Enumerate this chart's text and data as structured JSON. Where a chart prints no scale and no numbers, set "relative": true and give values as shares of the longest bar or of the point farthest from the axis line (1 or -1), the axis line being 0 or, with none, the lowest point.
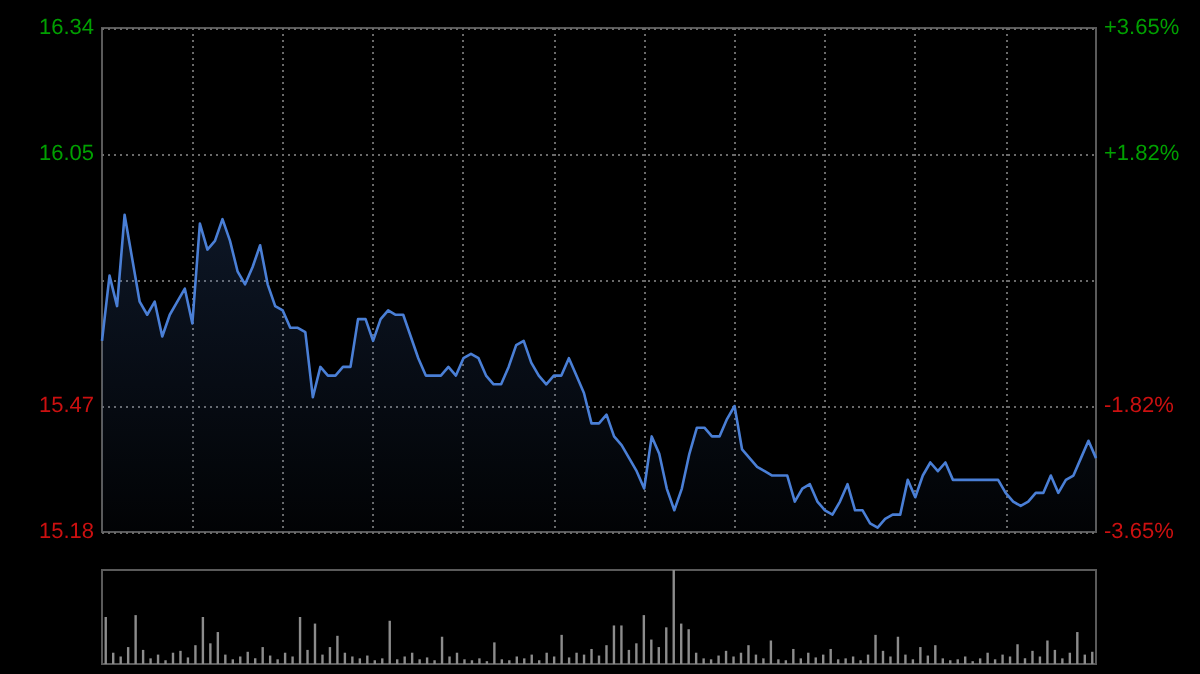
{
  "chart_data": [
    {
      "type": "area",
      "categories": [
        null,
        null,
        null,
        null,
        null,
        null,
        null,
        null,
        null,
        null,
        null,
        null,
        null,
        null,
        null,
        null,
        null,
        null,
        null,
        null,
        null,
        null,
        null,
        null,
        null,
        null,
        null,
        null,
        null,
        null,
        null,
        null,
        null,
        null,
        null,
        null,
        null,
        null,
        null,
        null,
        null,
        null,
        null,
        null,
        null,
        null,
        null,
        null,
        null,
        null,
        null,
        null,
        null,
        null,
        null,
        null,
        null,
        null,
        null,
        null,
        null,
        null,
        null,
        null,
        null,
        null,
        null,
        null,
        null,
        null,
        null,
        null,
        null,
        null,
        null,
        null,
        null,
        null,
        null,
        null,
        null,
        null,
        null,
        null,
        null,
        null,
        null,
        null,
        null,
        null,
        null,
        null,
        null,
        null,
        null,
        null,
        null,
        null,
        null,
        null,
        null,
        null,
        null,
        null,
        null,
        null,
        null,
        null,
        null,
        null,
        null,
        null,
        null,
        null,
        null,
        null,
        null,
        null,
        null,
        null,
        null,
        null,
        null,
        null,
        null,
        null,
        null,
        null,
        null,
        null,
        null,
        null,
        null
      ],
      "series": [
        {
          "color": "#4a7fd6",
          "values": [
            15.62,
            15.77,
            15.7,
            15.91,
            15.81,
            15.71,
            15.68,
            15.71,
            15.63,
            15.68,
            15.71,
            15.74,
            15.66,
            15.89,
            15.83,
            15.85,
            15.9,
            15.85,
            15.78,
            15.75,
            15.79,
            15.84,
            15.75,
            15.7,
            15.69,
            15.65,
            15.65,
            15.64,
            15.49,
            15.56,
            15.54,
            15.54,
            15.56,
            15.56,
            15.67,
            15.67,
            15.62,
            15.67,
            15.69,
            15.68,
            15.68,
            15.63,
            15.58,
            15.54,
            15.54,
            15.54,
            15.56,
            15.54,
            15.58,
            15.59,
            15.58,
            15.54,
            15.52,
            15.52,
            15.56,
            15.61,
            15.62,
            15.57,
            15.54,
            15.52,
            15.54,
            15.54,
            15.58,
            15.54,
            15.5,
            15.43,
            15.43,
            15.45,
            15.4,
            15.38,
            15.35,
            15.32,
            15.28,
            15.4,
            15.36,
            15.28,
            15.23,
            15.28,
            15.36,
            15.42,
            15.42,
            15.4,
            15.4,
            15.44,
            15.47,
            15.37,
            15.35,
            15.33,
            15.32,
            15.31,
            15.31,
            15.31,
            15.25,
            15.28,
            15.29,
            15.25,
            15.23,
            15.22,
            15.25,
            15.29,
            15.23,
            15.23,
            15.2,
            15.19,
            15.21,
            15.22,
            15.22,
            15.3,
            15.26,
            15.31,
            15.34,
            15.32,
            15.34,
            15.3,
            15.3,
            15.3,
            15.3,
            15.3,
            15.3,
            15.3,
            15.27,
            15.25,
            15.24,
            15.25,
            15.27,
            15.27,
            15.31,
            15.27,
            15.3,
            15.31,
            15.35,
            15.39,
            15.35
          ]
        }
      ],
      "ylim": [
        15.18,
        16.34
      ],
      "yticks": [
        15.18,
        15.47,
        {
          "value": 15.76,
          "label": null
        },
        16.05,
        16.34
      ],
      "y2lim": [
        -3.65,
        3.65
      ],
      "y2ticks": [
        {
          "value": -3.65,
          "label": "-3.65%"
        },
        {
          "value": -1.82,
          "label": "-1.82%"
        },
        {
          "value": 0,
          "label": null
        },
        {
          "value": 1.82,
          "label": "+1.82%"
        },
        {
          "value": 3.65,
          "label": "+3.65%"
        }
      ],
      "grid": true,
      "tick_labels": "y"
    },
    {
      "type": "bar",
      "relative": true,
      "tick_labels": false,
      "categories": [
        null,
        null,
        null,
        null,
        null,
        null,
        null,
        null,
        null,
        null,
        null,
        null,
        null,
        null,
        null,
        null,
        null,
        null,
        null,
        null,
        null,
        null,
        null,
        null,
        null,
        null,
        null,
        null,
        null,
        null,
        null,
        null,
        null,
        null,
        null,
        null,
        null,
        null,
        null,
        null,
        null,
        null,
        null,
        null,
        null,
        null,
        null,
        null,
        null,
        null,
        null,
        null,
        null,
        null,
        null,
        null,
        null,
        null,
        null,
        null,
        null,
        null,
        null,
        null,
        null,
        null,
        null,
        null,
        null,
        null,
        null,
        null,
        null,
        null,
        null,
        null,
        null,
        null,
        null,
        null,
        null,
        null,
        null,
        null,
        null,
        null,
        null,
        null,
        null,
        null,
        null,
        null,
        null,
        null,
        null,
        null,
        null,
        null,
        null,
        null,
        null,
        null,
        null,
        null,
        null,
        null,
        null,
        null,
        null,
        null,
        null,
        null,
        null,
        null,
        null,
        null,
        null,
        null,
        null,
        null,
        null,
        null,
        null,
        null,
        null,
        null,
        null,
        null,
        null,
        null,
        null,
        null,
        null
      ],
      "series": [
        {
          "color": "#8c8c8c",
          "values": [
            0.5,
            0.12,
            0.08,
            0.18,
            0.52,
            0.15,
            0.06,
            0.1,
            0.04,
            0.12,
            0.14,
            0.07,
            0.2,
            0.5,
            0.22,
            0.34,
            0.1,
            0.05,
            0.08,
            0.13,
            0.06,
            0.18,
            0.09,
            0.05,
            0.12,
            0.08,
            0.5,
            0.15,
            0.43,
            0.1,
            0.18,
            0.3,
            0.12,
            0.08,
            0.06,
            0.09,
            0.04,
            0.06,
            0.46,
            0.05,
            0.08,
            0.12,
            0.05,
            0.07,
            0.04,
            0.29,
            0.08,
            0.12,
            0.05,
            0.04,
            0.06,
            0.03,
            0.23,
            0.05,
            0.04,
            0.08,
            0.06,
            0.1,
            0.04,
            0.12,
            0.08,
            0.31,
            0.07,
            0.12,
            0.1,
            0.16,
            0.09,
            0.2,
            0.41,
            0.41,
            0.15,
            0.22,
            0.52,
            0.26,
            0.18,
            0.39,
            1,
            0.43,
            0.37,
            0.12,
            0.06,
            0.05,
            0.09,
            0.14,
            0.08,
            0.12,
            0.2,
            0.1,
            0.06,
            0.25,
            0.05,
            0.04,
            0.16,
            0.06,
            0.12,
            0.07,
            0.1,
            0.16,
            0.05,
            0.06,
            0.08,
            0.04,
            0.1,
            0.31,
            0.14,
            0.08,
            0.29,
            0.1,
            0.05,
            0.18,
            0.09,
            0.2,
            0.06,
            0.04,
            0.05,
            0.08,
            0.03,
            0.06,
            0.12,
            0.05,
            0.1,
            0.08,
            0.21,
            0.06,
            0.14,
            0.08,
            0.25,
            0.15,
            0.06,
            0.12,
            0.34,
            0.1,
            0.13
          ]
        }
      ]
    }
  ]
}
